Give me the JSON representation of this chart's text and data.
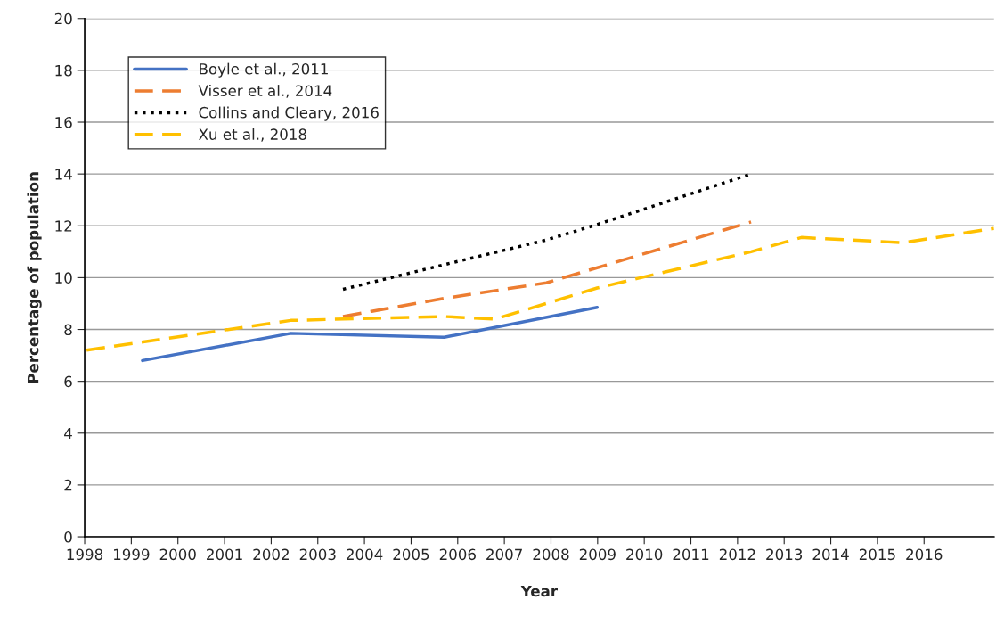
{
  "chart_data": {
    "type": "line",
    "xlabel": "Year",
    "ylabel": "Percentage of population",
    "xlim": [
      1998,
      2017.5
    ],
    "xticks": [
      1998,
      1999,
      2000,
      2001,
      2002,
      2003,
      2004,
      2005,
      2006,
      2007,
      2008,
      2009,
      2010,
      2011,
      2012,
      2013,
      2014,
      2015,
      2016
    ],
    "ylim": [
      0,
      20
    ],
    "yticks": [
      0,
      2,
      4,
      6,
      8,
      10,
      12,
      14,
      16,
      18,
      20
    ],
    "grid": "y",
    "legend": "top left",
    "marker": "none",
    "series": [
      {
        "name": "Boyle et al., 2011",
        "color": "#4472c4",
        "line_style": "solid",
        "x": [
          1999.24,
          2002.42,
          2005.71,
          2008.99
        ],
        "values": [
          6.8,
          7.85,
          7.7,
          8.85
        ]
      },
      {
        "name": "Visser et al., 2014",
        "color": "#ed7d31",
        "line_style": "dashed",
        "x": [
          2003.54,
          2005.71,
          2007.9,
          2012.29
        ],
        "values": [
          8.5,
          9.2,
          9.8,
          12.15
        ]
      },
      {
        "name": "Collins and Cleary, 2016",
        "color": "#000000",
        "line_style": "dotted",
        "x": [
          2003.54,
          2005.71,
          2007.9,
          2008.99,
          2012.29
        ],
        "values": [
          9.55,
          10.5,
          11.45,
          12.05,
          14.0
        ]
      },
      {
        "name": "Xu et al., 2018",
        "color": "#ffc000",
        "line_style": "dashed",
        "x": [
          1998.04,
          2002.42,
          2005.71,
          2006.8,
          2008.99,
          2012.29,
          2013.37,
          2015.56,
          2017.5
        ],
        "values": [
          7.2,
          8.35,
          8.5,
          8.4,
          9.6,
          11.0,
          11.55,
          11.35,
          11.9
        ]
      }
    ]
  }
}
